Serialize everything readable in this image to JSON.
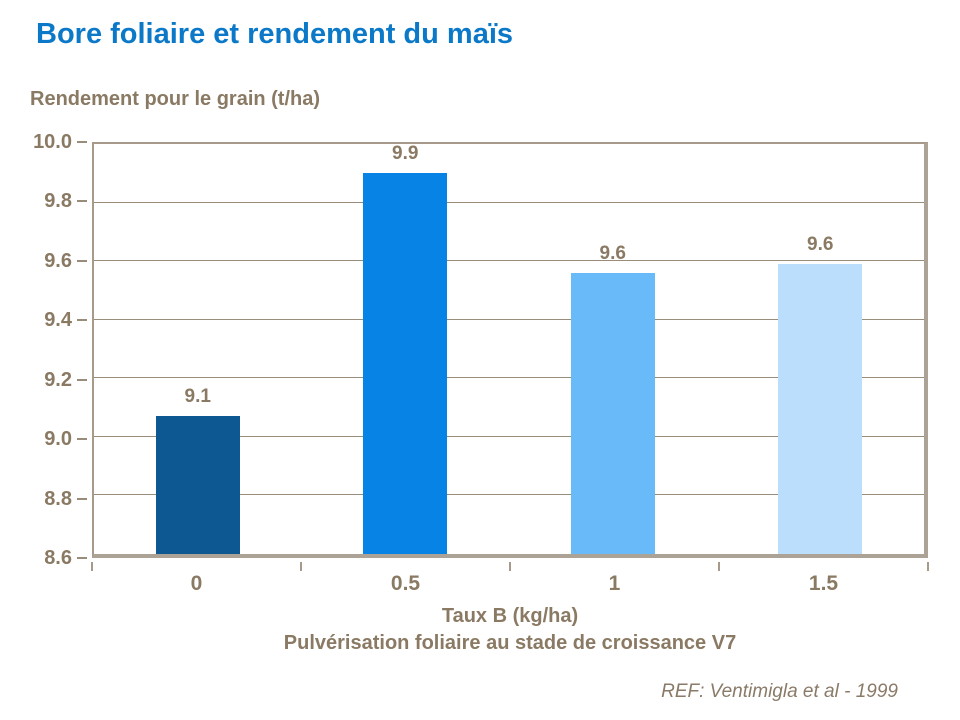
{
  "page": {
    "reference": "REF: Ventimigla et al - 1999"
  },
  "colors": {
    "title_blue": "#0B79C8",
    "text_brown": "#8A7A64",
    "gridline": "#9A8C7B",
    "plot_border": "#A79A8B",
    "plot_border_shadow": "#ACA295",
    "background": "#FFFFFF"
  },
  "chart_data": {
    "type": "bar",
    "title": "Bore foliaire et rendement du maïs",
    "ylabel": "Rendement pour le grain (t/ha)",
    "xlabel": "Taux B (kg/ha)",
    "xlabel2": "Pulvérisation foliaire au stade de croissance V7",
    "categories": [
      "0",
      "0.5",
      "1",
      "1.5"
    ],
    "values": [
      9.1,
      9.9,
      9.6,
      9.6
    ],
    "value_labels": [
      "9.1",
      "9.9",
      "9.6",
      "9.6"
    ],
    "render_values": [
      9.07,
      9.9,
      9.56,
      9.59
    ],
    "ylim": [
      8.6,
      10.0
    ],
    "yticks": [
      8.6,
      8.8,
      9.0,
      9.2,
      9.4,
      9.6,
      9.8,
      10.0
    ],
    "ytick_labels": [
      "8.6",
      "8.8",
      "9.0",
      "9.2",
      "9.4",
      "9.6",
      "9.8",
      "10.0"
    ],
    "bar_colors": [
      "#0D5792",
      "#0783E6",
      "#68BAF8",
      "#BADEFB"
    ],
    "grid": true,
    "legend": false
  }
}
